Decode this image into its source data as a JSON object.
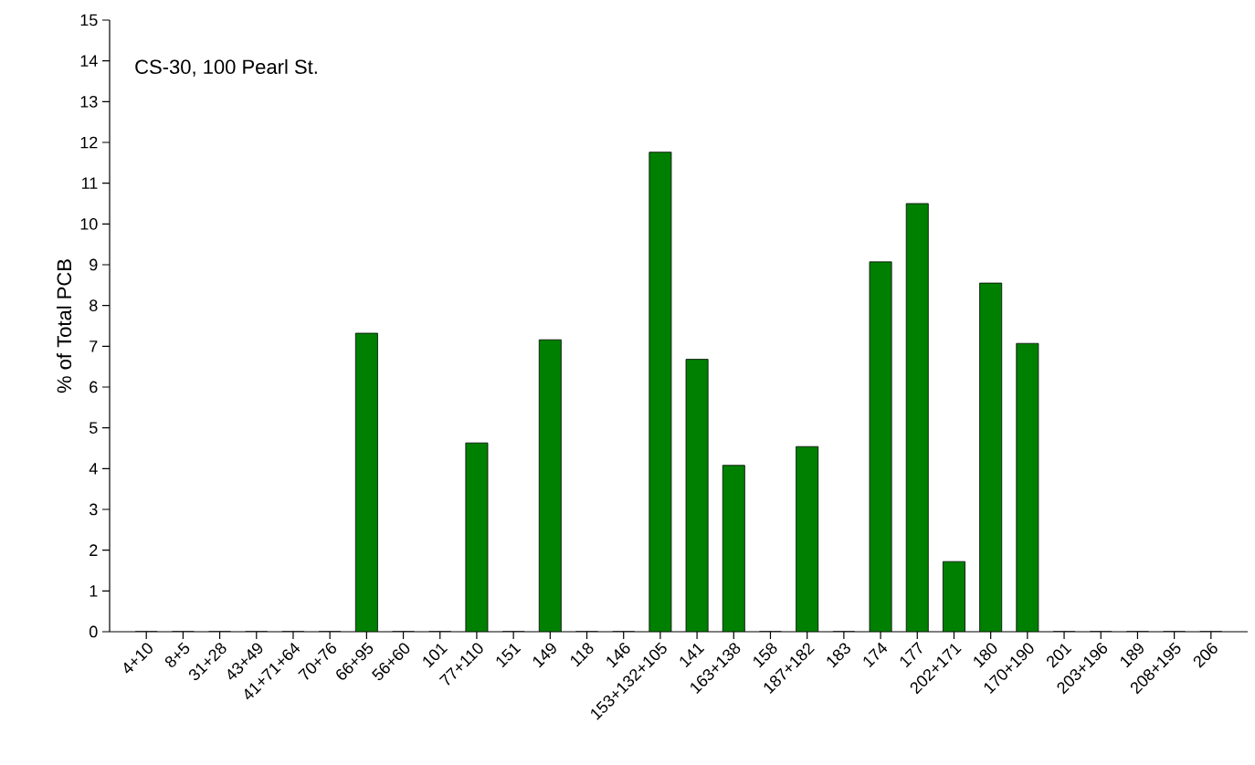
{
  "chart_data": {
    "type": "bar",
    "ylabel": "% of Total PCB",
    "annotations": [
      "CS-30, 100 Pearl St."
    ],
    "categories": [
      "4+10",
      "8+5",
      "31+28",
      "43+49",
      "41+71+64",
      "70+76",
      "66+95",
      "56+60",
      "101",
      "77+110",
      "151",
      "149",
      "118",
      "146",
      "153+132+105",
      "141",
      "163+138",
      "158",
      "187+182",
      "183",
      "174",
      "177",
      "202+171",
      "180",
      "170+190",
      "201",
      "203+196",
      "189",
      "208+195",
      "206"
    ],
    "values": [
      0,
      0,
      0,
      0,
      0,
      0,
      7.32,
      0,
      0,
      4.63,
      0,
      7.16,
      0,
      0,
      11.76,
      6.68,
      4.08,
      0,
      4.54,
      0,
      9.07,
      10.5,
      1.72,
      8.55,
      7.07,
      0,
      0,
      0,
      0,
      0
    ],
    "color": "#008000",
    "ylim": [
      0,
      15
    ],
    "yticks": [
      0,
      1,
      2,
      3,
      4,
      5,
      6,
      7,
      8,
      9,
      10,
      11,
      12,
      13,
      14,
      15
    ]
  }
}
